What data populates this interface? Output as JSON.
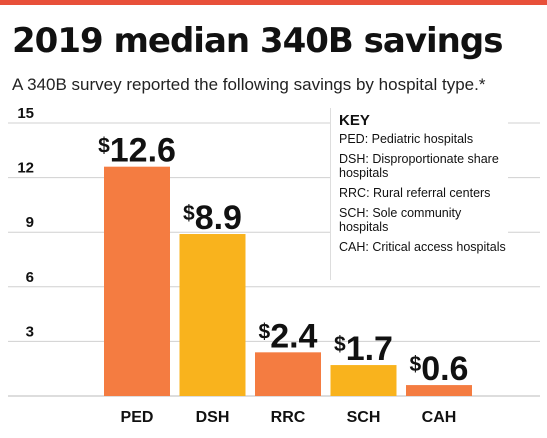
{
  "title": "2019 median 340B savings",
  "subtitle": "A 340B survey reported the following savings by hospital type.*",
  "key": {
    "title": "KEY",
    "items": [
      "PED: Pediatric hospitals",
      "DSH: Disproportionate share hospitals",
      "RRC: Rural referral centers",
      "SCH: Sole community hospitals",
      "CAH: Critical access hospitals"
    ]
  },
  "colors": {
    "orange": "#f47c41",
    "yellow": "#f9b31d",
    "accent": "#e8503a",
    "grid": "#d0d0d0"
  },
  "chart_data": {
    "type": "bar",
    "title": "2019 median 340B savings",
    "categories": [
      "PED",
      "DSH",
      "RRC",
      "SCH",
      "CAH"
    ],
    "values": [
      12.6,
      8.9,
      2.4,
      1.7,
      0.6
    ],
    "data_labels": [
      "$12.6",
      "$8.9",
      "$2.4",
      "$1.7",
      "$0.6"
    ],
    "bar_colors": [
      "#f47c41",
      "#f9b31d",
      "#f47c41",
      "#f9b31d",
      "#f47c41"
    ],
    "ylim": [
      0,
      15
    ],
    "yticks": [
      3,
      6,
      9,
      12,
      15
    ],
    "grid": true,
    "legend": "top-right key box"
  }
}
